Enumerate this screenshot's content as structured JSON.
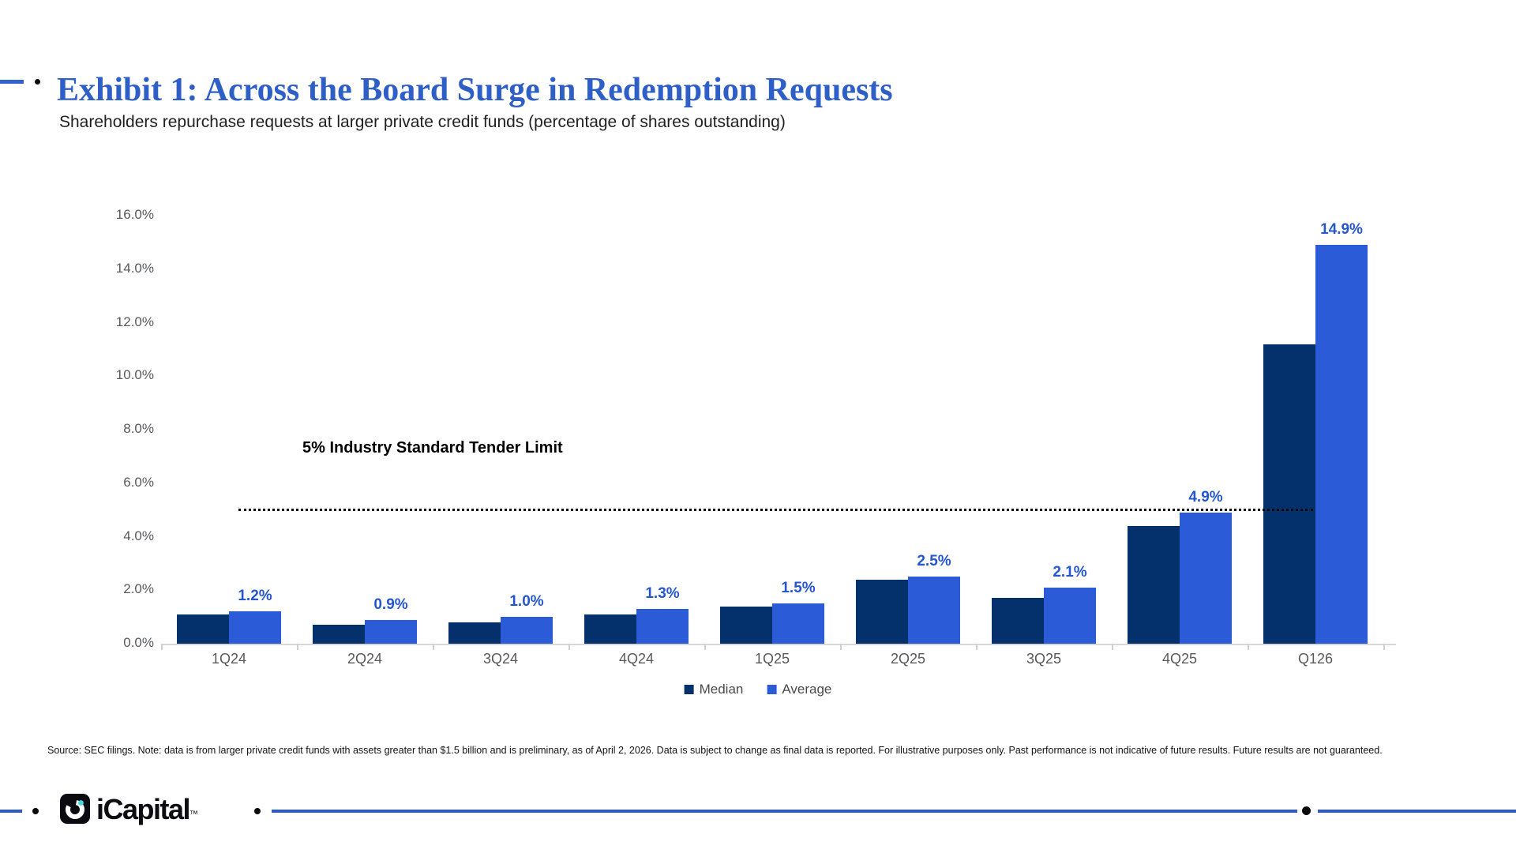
{
  "header": {
    "title": "Exhibit 1: Across the Board Surge in Redemption Requests",
    "subtitle": "Shareholders repurchase requests at larger private credit funds (percentage of shares outstanding)"
  },
  "chart_data": {
    "type": "bar",
    "categories": [
      "1Q24",
      "2Q24",
      "3Q24",
      "4Q24",
      "1Q25",
      "2Q25",
      "3Q25",
      "4Q25",
      "Q126"
    ],
    "series": [
      {
        "name": "Median",
        "color": "#04306C",
        "values": [
          1.1,
          0.7,
          0.8,
          1.1,
          1.4,
          2.4,
          1.7,
          4.4,
          11.2
        ]
      },
      {
        "name": "Average",
        "color": "#2B5BD6",
        "values": [
          1.2,
          0.9,
          1.0,
          1.3,
          1.5,
          2.5,
          2.1,
          4.9,
          14.9
        ],
        "data_labels": [
          "1.2%",
          "0.9%",
          "1.0%",
          "1.3%",
          "1.5%",
          "2.5%",
          "2.1%",
          "4.9%",
          "14.9%"
        ]
      }
    ],
    "ylim": [
      0,
      16
    ],
    "y_tick_step": 2,
    "y_tick_suffix": ".0%",
    "grid": false,
    "legend_position": "bottom",
    "reference_line": {
      "value": 5,
      "label": "5% Industry Standard Tender Limit"
    }
  },
  "legend": {
    "items": [
      {
        "label": "Median",
        "color": "#04306C"
      },
      {
        "label": "Average",
        "color": "#2B5BD6"
      }
    ]
  },
  "footer": {
    "source": "Source: SEC filings. Note: data is from larger private credit funds with assets greater than $1.5 billion and is preliminary, as of April 2, 2026. Data is subject to change as final data is reported. For illustrative purposes only. Past performance is not indicative of future results. Future results are not guaranteed."
  },
  "brand": {
    "wordmark": "iCapital",
    "trademark": "™"
  },
  "colors": {
    "title_blue": "#2E5FC7",
    "median_navy": "#04306C",
    "average_blue": "#2B5BD6",
    "data_label_blue": "#2456CE",
    "axis_text_gray": "#58595B",
    "brand_line_blue": "#2F5BC9",
    "logo_teal_dot": "#45D6E3"
  }
}
